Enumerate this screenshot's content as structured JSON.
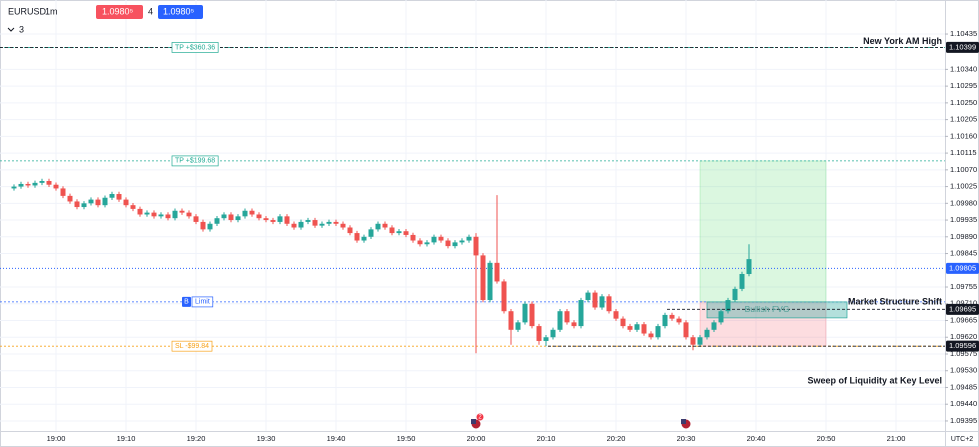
{
  "toolbar": {
    "symbol": "EURUSD",
    "interval": "1m",
    "sell_price": "1.0980⁵",
    "quantity": "4",
    "buy_price": "1.0980⁵",
    "indicator_count": "3"
  },
  "chart_data": {
    "type": "candlestick",
    "up_color": "#26a69a",
    "down_color": "#ef5350",
    "grid": true,
    "x": [
      "18:54",
      "18:55",
      "18:56",
      "18:57",
      "18:58",
      "18:59",
      "19:00",
      "19:01",
      "19:02",
      "19:03",
      "19:04",
      "19:05",
      "19:06",
      "19:07",
      "19:08",
      "19:09",
      "19:10",
      "19:11",
      "19:12",
      "19:13",
      "19:14",
      "19:15",
      "19:16",
      "19:17",
      "19:18",
      "19:19",
      "19:20",
      "19:21",
      "19:22",
      "19:23",
      "19:24",
      "19:25",
      "19:26",
      "19:27",
      "19:28",
      "19:29",
      "19:30",
      "19:31",
      "19:32",
      "19:33",
      "19:34",
      "19:35",
      "19:36",
      "19:37",
      "19:38",
      "19:39",
      "19:40",
      "19:41",
      "19:42",
      "19:43",
      "19:44",
      "19:45",
      "19:46",
      "19:47",
      "19:48",
      "19:49",
      "19:50",
      "19:51",
      "19:52",
      "19:53",
      "19:54",
      "19:55",
      "19:56",
      "19:57",
      "19:58",
      "19:59",
      "20:00",
      "20:01",
      "20:02",
      "20:03",
      "20:04",
      "20:05",
      "20:06",
      "20:07",
      "20:08",
      "20:09",
      "20:10",
      "20:11",
      "20:12",
      "20:13",
      "20:14",
      "20:15",
      "20:16",
      "20:17",
      "20:18",
      "20:19",
      "20:20",
      "20:21",
      "20:22",
      "20:23",
      "20:24",
      "20:25",
      "20:26",
      "20:27",
      "20:28",
      "20:29",
      "20:30",
      "20:31",
      "20:32",
      "20:33",
      "20:34",
      "20:35",
      "20:36",
      "20:37",
      "20:38",
      "20:39"
    ],
    "open": [
      1.1002,
      1.10025,
      1.10032,
      1.10028,
      1.10035,
      1.1004,
      1.1003,
      1.1002,
      1.1,
      1.09985,
      1.0997,
      1.0998,
      1.0999,
      1.09975,
      1.09995,
      1.10005,
      1.0999,
      1.09975,
      1.09965,
      1.0995,
      1.09955,
      1.09945,
      1.0995,
      1.0994,
      1.0996,
      1.09955,
      1.09945,
      1.0993,
      1.0991,
      1.09925,
      1.0994,
      1.0995,
      1.09935,
      1.09945,
      1.0996,
      1.0995,
      1.0994,
      1.09935,
      1.0993,
      1.09945,
      1.09925,
      1.09915,
      1.0993,
      1.09935,
      1.0992,
      1.09925,
      1.0993,
      1.09925,
      1.09915,
      1.099,
      1.0988,
      1.0989,
      1.0991,
      1.09925,
      1.09915,
      1.099,
      1.09905,
      1.09895,
      1.0988,
      1.0987,
      1.09875,
      1.0989,
      1.0988,
      1.09865,
      1.09875,
      1.0988,
      1.0989,
      1.0984,
      1.0972,
      1.0982,
      1.0977,
      1.0969,
      1.0964,
      1.0966,
      1.0971,
      1.0965,
      1.0961,
      1.0962,
      1.0964,
      1.0969,
      1.0966,
      1.0965,
      1.0972,
      1.0974,
      1.097,
      1.0973,
      1.0969,
      1.0967,
      1.0965,
      1.0964,
      1.09655,
      1.0963,
      1.0962,
      1.0965,
      1.0968,
      1.0967,
      1.0966,
      1.0962,
      1.096,
      1.0962,
      1.0964,
      1.0966,
      1.0969,
      1.0972,
      1.0975,
      1.0979
    ],
    "high": [
      1.10031,
      1.10038,
      1.10038,
      1.10041,
      1.10046,
      1.10046,
      1.10036,
      1.10026,
      1.10006,
      1.09991,
      1.09986,
      1.09996,
      1.09996,
      1.10001,
      1.10011,
      1.10011,
      1.09996,
      1.09981,
      1.09971,
      1.09961,
      1.09961,
      1.09956,
      1.09956,
      1.09966,
      1.09966,
      1.09961,
      1.09951,
      1.09936,
      1.09931,
      1.09946,
      1.09956,
      1.09956,
      1.09951,
      1.09966,
      1.09966,
      1.09956,
      1.09946,
      1.09941,
      1.09951,
      1.09951,
      1.09931,
      1.09936,
      1.09941,
      1.09941,
      1.09931,
      1.09936,
      1.09936,
      1.09931,
      1.09921,
      1.09906,
      1.09896,
      1.09916,
      1.09931,
      1.09931,
      1.09921,
      1.09911,
      1.09911,
      1.09901,
      1.09886,
      1.09881,
      1.09896,
      1.09896,
      1.09886,
      1.09881,
      1.09886,
      1.09896,
      1.099,
      1.09846,
      1.09826,
      1.10002,
      1.09776,
      1.09696,
      1.09666,
      1.09716,
      1.09716,
      1.09656,
      1.09626,
      1.09646,
      1.09696,
      1.09696,
      1.09666,
      1.09726,
      1.09746,
      1.09746,
      1.09736,
      1.09736,
      1.09696,
      1.09676,
      1.09656,
      1.09661,
      1.09661,
      1.09636,
      1.09656,
      1.09686,
      1.09686,
      1.09676,
      1.09666,
      1.09626,
      1.09626,
      1.09646,
      1.09666,
      1.09696,
      1.09726,
      1.09756,
      1.09796,
      1.0987
    ],
    "low": [
      1.10014,
      1.10019,
      1.10022,
      1.10022,
      1.10029,
      1.10024,
      1.10014,
      1.09994,
      1.09979,
      1.09964,
      1.09964,
      1.09974,
      1.09969,
      1.09969,
      1.09989,
      1.09984,
      1.09969,
      1.09959,
      1.09944,
      1.09944,
      1.09939,
      1.09939,
      1.09934,
      1.09934,
      1.09949,
      1.09939,
      1.09924,
      1.09904,
      1.09904,
      1.09919,
      1.09934,
      1.09929,
      1.09929,
      1.09939,
      1.09944,
      1.09934,
      1.09929,
      1.09924,
      1.09924,
      1.09919,
      1.09909,
      1.09909,
      1.09924,
      1.09914,
      1.09914,
      1.09919,
      1.09919,
      1.09909,
      1.09894,
      1.09874,
      1.09874,
      1.09884,
      1.09904,
      1.09909,
      1.09894,
      1.09894,
      1.09889,
      1.09874,
      1.09864,
      1.09864,
      1.09869,
      1.09874,
      1.09859,
      1.09859,
      1.09869,
      1.09874,
      1.09577,
      1.09714,
      1.09714,
      1.09764,
      1.09684,
      1.096,
      1.09634,
      1.09654,
      1.09644,
      1.096,
      1.09596,
      1.09614,
      1.09634,
      1.09654,
      1.09644,
      1.09644,
      1.09714,
      1.09694,
      1.09694,
      1.09684,
      1.09664,
      1.09644,
      1.09634,
      1.09634,
      1.09624,
      1.09614,
      1.09614,
      1.09644,
      1.09664,
      1.09654,
      1.09614,
      1.09585,
      1.09594,
      1.09614,
      1.09634,
      1.09654,
      1.09684,
      1.09714,
      1.09744,
      1.09784
    ],
    "close": [
      1.10025,
      1.10032,
      1.10028,
      1.10035,
      1.1004,
      1.1003,
      1.1002,
      1.1,
      1.09985,
      1.0997,
      1.0998,
      1.0999,
      1.09975,
      1.09995,
      1.10005,
      1.0999,
      1.09975,
      1.09965,
      1.0995,
      1.09955,
      1.09945,
      1.0995,
      1.0994,
      1.0996,
      1.09955,
      1.09945,
      1.0993,
      1.0991,
      1.09925,
      1.0994,
      1.0995,
      1.09935,
      1.09945,
      1.0996,
      1.0995,
      1.0994,
      1.09935,
      1.0993,
      1.09945,
      1.09925,
      1.09915,
      1.0993,
      1.09935,
      1.0992,
      1.09925,
      1.0993,
      1.09925,
      1.09915,
      1.099,
      1.0988,
      1.0989,
      1.0991,
      1.09925,
      1.09915,
      1.099,
      1.09905,
      1.09895,
      1.0988,
      1.0987,
      1.09875,
      1.0989,
      1.0988,
      1.09865,
      1.09875,
      1.0988,
      1.0989,
      1.0984,
      1.0972,
      1.0982,
      1.0977,
      1.0969,
      1.0964,
      1.0966,
      1.0971,
      1.0965,
      1.0961,
      1.0962,
      1.0964,
      1.0969,
      1.0966,
      1.0965,
      1.0972,
      1.0974,
      1.097,
      1.0973,
      1.0969,
      1.0967,
      1.0965,
      1.0964,
      1.09655,
      1.0963,
      1.0962,
      1.0965,
      1.0968,
      1.0967,
      1.0966,
      1.0962,
      1.096,
      1.0962,
      1.0964,
      1.0966,
      1.0969,
      1.0972,
      1.0975,
      1.0979,
      1.0983
    ],
    "xlim": [
      "18:52",
      "21:07"
    ],
    "xticks": [
      "19:00",
      "19:10",
      "19:20",
      "19:30",
      "19:40",
      "19:50",
      "20:00",
      "20:10",
      "20:20",
      "20:30",
      "20:40",
      "20:50",
      "21:00"
    ],
    "ylim": [
      1.09368,
      1.10505
    ],
    "yticks": [
      {
        "value": 1.10435,
        "label": "1.10435"
      },
      {
        "value": 1.1034,
        "label": "1.10340"
      },
      {
        "value": 1.10295,
        "label": "1.10295"
      },
      {
        "value": 1.1025,
        "label": "1.10250"
      },
      {
        "value": 1.10205,
        "label": "1.10205"
      },
      {
        "value": 1.1016,
        "label": "1.10160"
      },
      {
        "value": 1.10115,
        "label": "1.10115"
      },
      {
        "value": 1.1007,
        "label": "1.10070"
      },
      {
        "value": 1.10025,
        "label": "1.10025"
      },
      {
        "value": 1.0998,
        "label": "1.09980"
      },
      {
        "value": 1.09935,
        "label": "1.09935"
      },
      {
        "value": 1.0989,
        "label": "1.09890"
      },
      {
        "value": 1.09845,
        "label": "1.09845"
      },
      {
        "value": 1.09755,
        "label": "1.09755"
      },
      {
        "value": 1.0971,
        "label": "1.09710"
      },
      {
        "value": 1.09665,
        "label": "1.09665"
      },
      {
        "value": 1.0962,
        "label": "1.09620"
      },
      {
        "value": 1.09575,
        "label": "1.09575"
      },
      {
        "value": 1.0953,
        "label": "1.09530"
      },
      {
        "value": 1.09485,
        "label": "1.09485"
      },
      {
        "value": 1.0944,
        "label": "1.09440"
      },
      {
        "value": 1.09395,
        "label": "1.09395"
      }
    ],
    "timezone": "UTC+2",
    "price_lines": [
      {
        "label": "TP +$360.36",
        "value": 1.10399,
        "color": "#22ab94"
      },
      {
        "label": "TP +$199.68",
        "value": 1.10094,
        "color": "#22ab94"
      },
      {
        "side": "B",
        "label": "Limit",
        "value": 1.09715,
        "color": "#2962ff"
      },
      {
        "label": "SL -$99.84",
        "value": 1.09596,
        "color": "#f7a21b"
      }
    ],
    "current_price": {
      "value": 1.09805,
      "color": "#2962ff"
    },
    "price_tags": [
      {
        "value": 1.10399,
        "color": "#131722"
      },
      {
        "value": 1.09805,
        "color": "#2962ff"
      },
      {
        "value": 1.09695,
        "color": "#131722"
      },
      {
        "value": 1.09596,
        "color": "#131722"
      }
    ],
    "position": {
      "start": "20:32",
      "end": "20:50",
      "entry": 1.09715,
      "take_profit": 1.10094,
      "stop_loss": 1.09596
    },
    "fvg": {
      "label": "Bullish FVG",
      "start": "20:33",
      "end": "20:53",
      "top": 1.09715,
      "bottom": 1.09672
    },
    "annotations": [
      {
        "text": "New York AM High",
        "value": 1.10399
      },
      {
        "text": "Market Structure Shift",
        "value": 1.09695
      },
      {
        "text": "Sweep of Liquidity at Key Level",
        "value": 1.09596
      }
    ],
    "events": [
      {
        "time": "20:00",
        "count": 2
      },
      {
        "time": "20:30"
      }
    ]
  }
}
